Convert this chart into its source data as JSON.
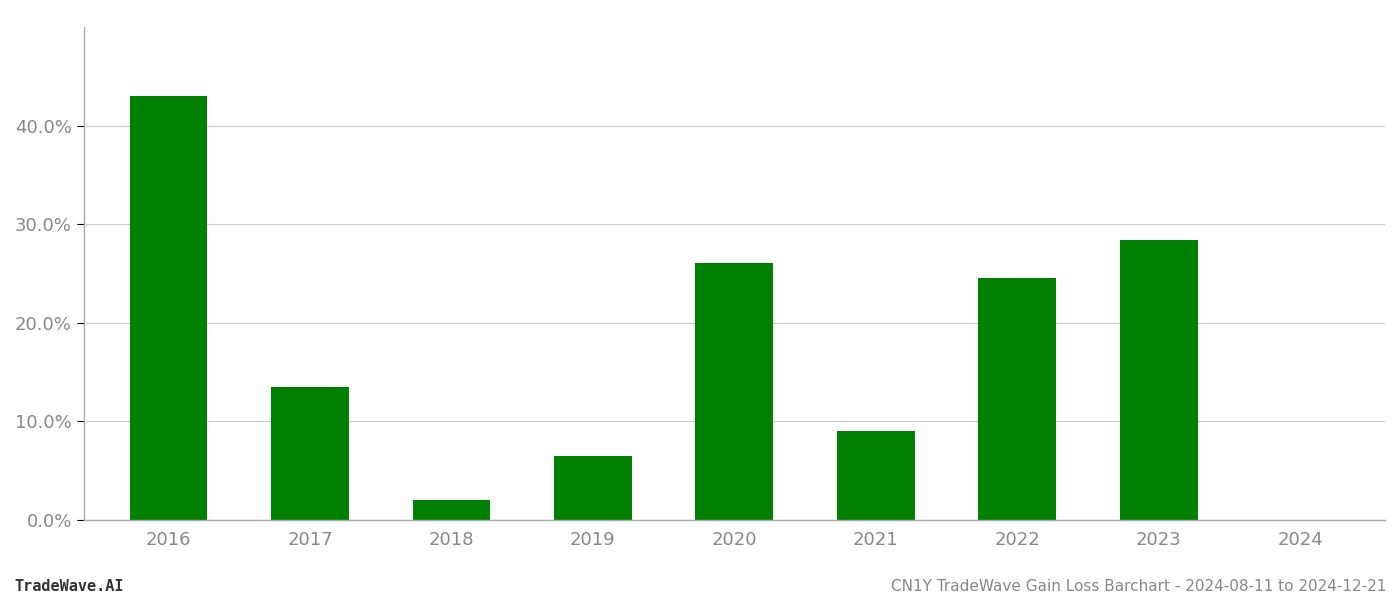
{
  "years": [
    "2016",
    "2017",
    "2018",
    "2019",
    "2020",
    "2021",
    "2022",
    "2023",
    "2024"
  ],
  "values": [
    0.43,
    0.135,
    0.02,
    0.065,
    0.261,
    0.09,
    0.245,
    0.284,
    0.0
  ],
  "bar_color": "#008000",
  "background_color": "#ffffff",
  "grid_color": "#cccccc",
  "axis_color": "#aaaaaa",
  "text_color": "#888888",
  "footer_left": "TradeWave.AI",
  "footer_right": "CN1Y TradeWave Gain Loss Barchart - 2024-08-11 to 2024-12-21",
  "ylim": [
    0,
    0.5
  ],
  "yticks": [
    0.0,
    0.1,
    0.2,
    0.3,
    0.4
  ],
  "tick_fontsize": 13,
  "footer_fontsize": 11,
  "bar_width": 0.55
}
